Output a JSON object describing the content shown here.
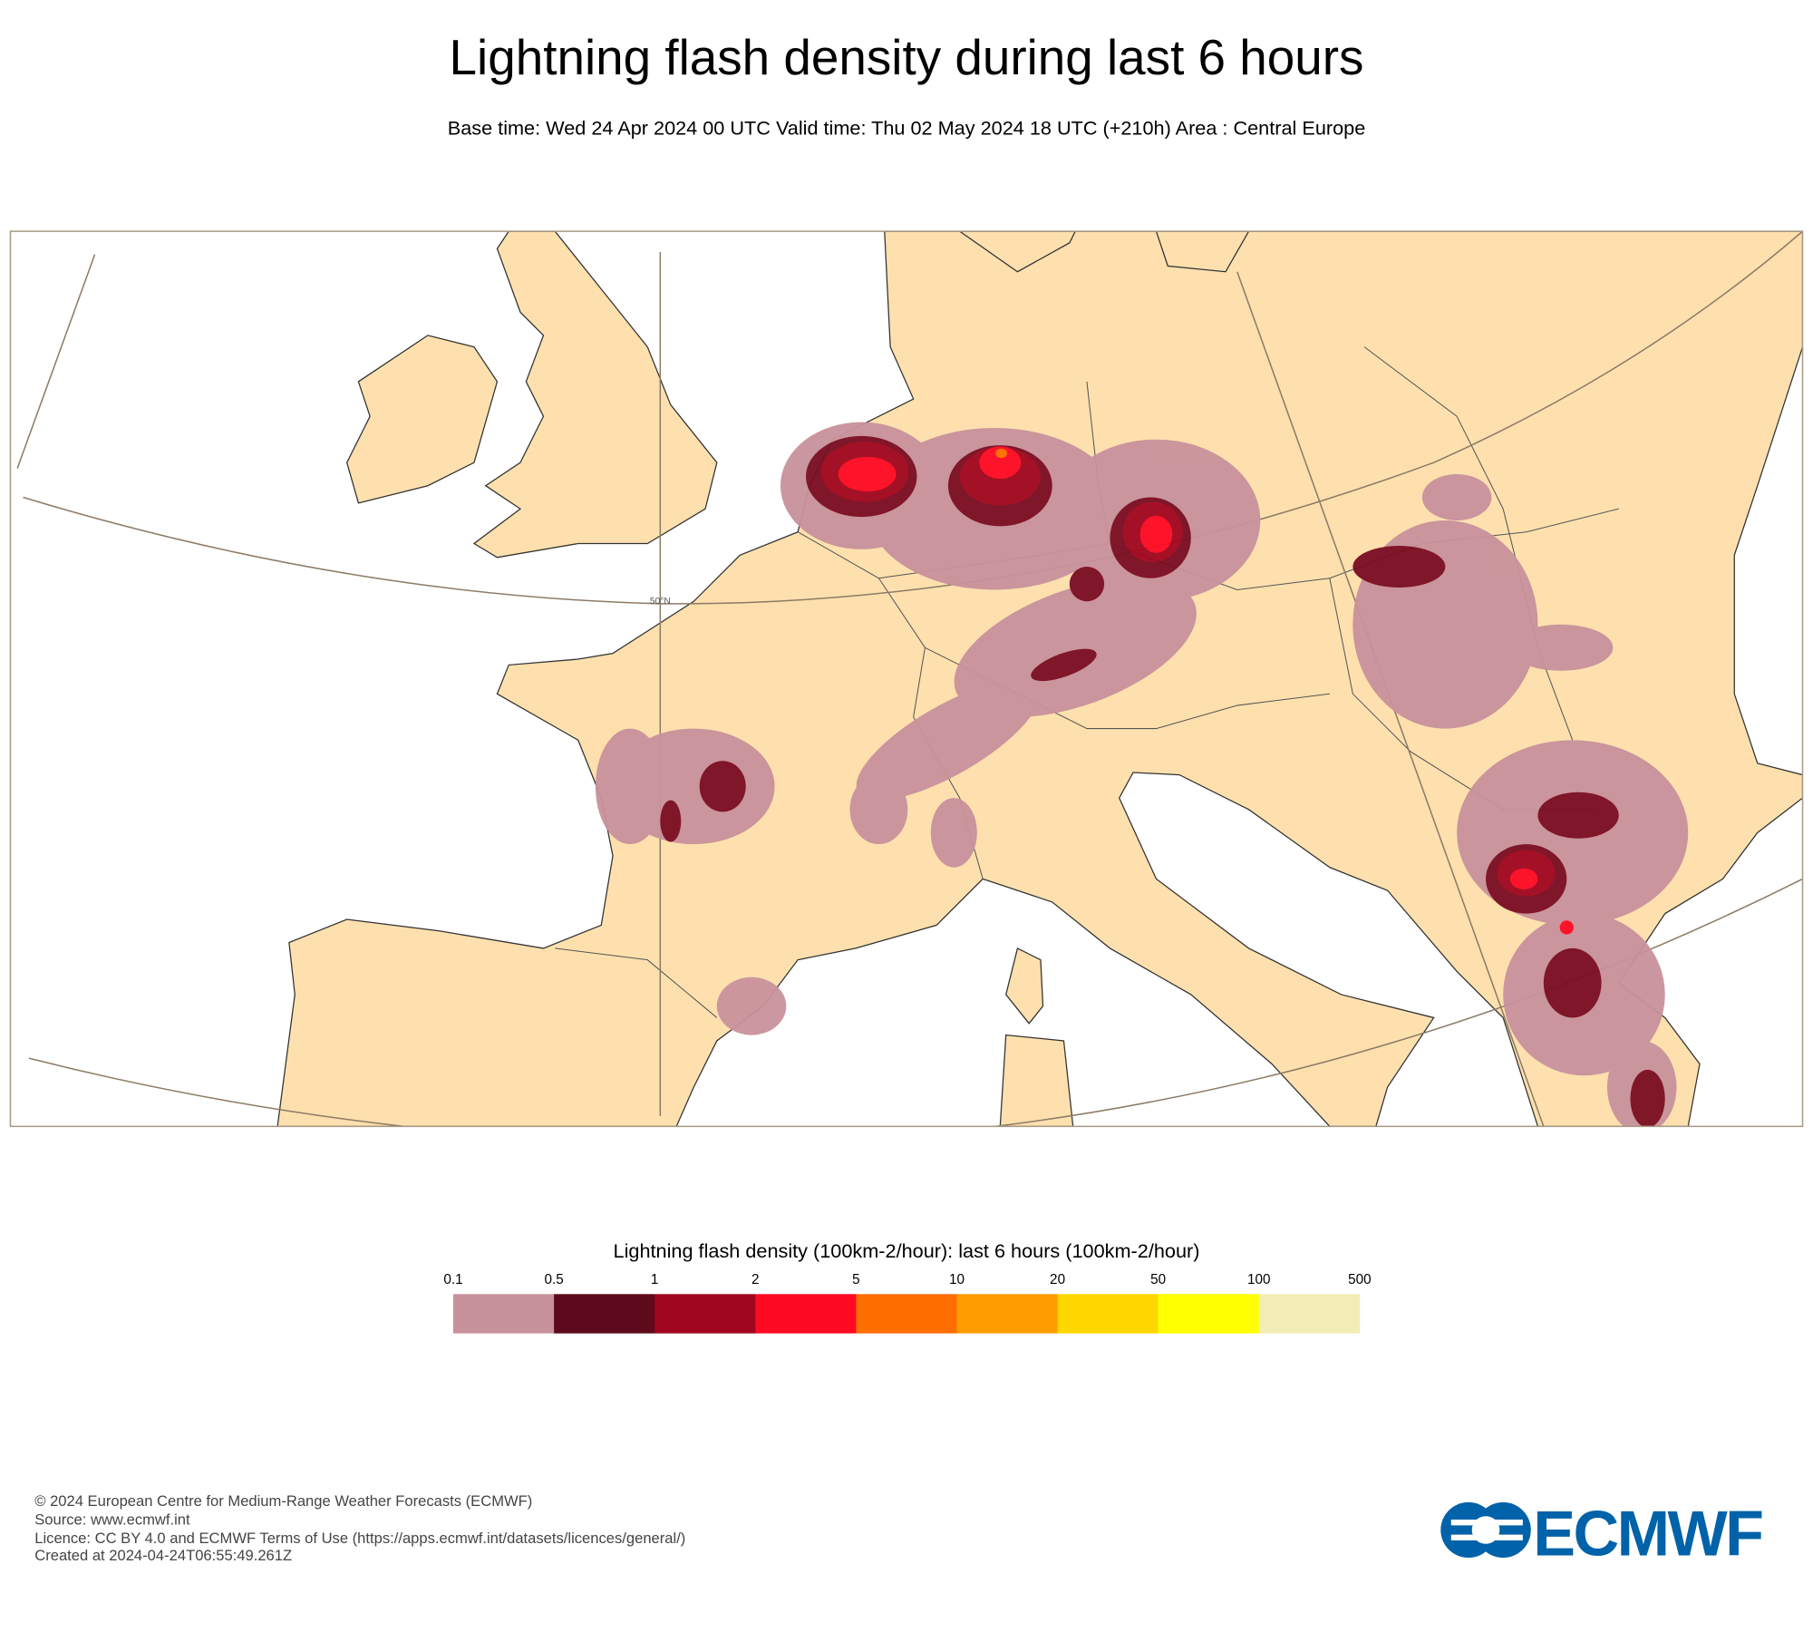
{
  "header": {
    "title": "Lightning flash density during last 6 hours",
    "subtitle": "Base time: Wed 24 Apr 2024 00 UTC Valid time: Thu 02 May 2024 18 UTC (+210h) Area : Central Europe"
  },
  "map": {
    "graticule_label": "50°N"
  },
  "legend": {
    "title": "Lightning flash density (100km-2/hour): last 6 hours (100km-2/hour)",
    "bounds": [
      0.1,
      0.5,
      1,
      2,
      5,
      10,
      20,
      50,
      100,
      500
    ],
    "colors": [
      "#c8929c",
      "#5e0a1c",
      "#a0061f",
      "#fe0a23",
      "#ff6e00",
      "#ff9c00",
      "#ffd700",
      "#ffff00",
      "#f2edb5"
    ]
  },
  "footer": {
    "lines": [
      "© 2024 European Centre for Medium-Range Weather Forecasts (ECMWF)",
      "Source: www.ecmwf.int",
      "Licence: CC BY 4.0 and ECMWF Terms of Use (https://apps.ecmwf.int/datasets/licences/general/)",
      "Created at 2024-04-24T06:55:49.261Z"
    ]
  },
  "logo": {
    "text": "ECMWF"
  }
}
